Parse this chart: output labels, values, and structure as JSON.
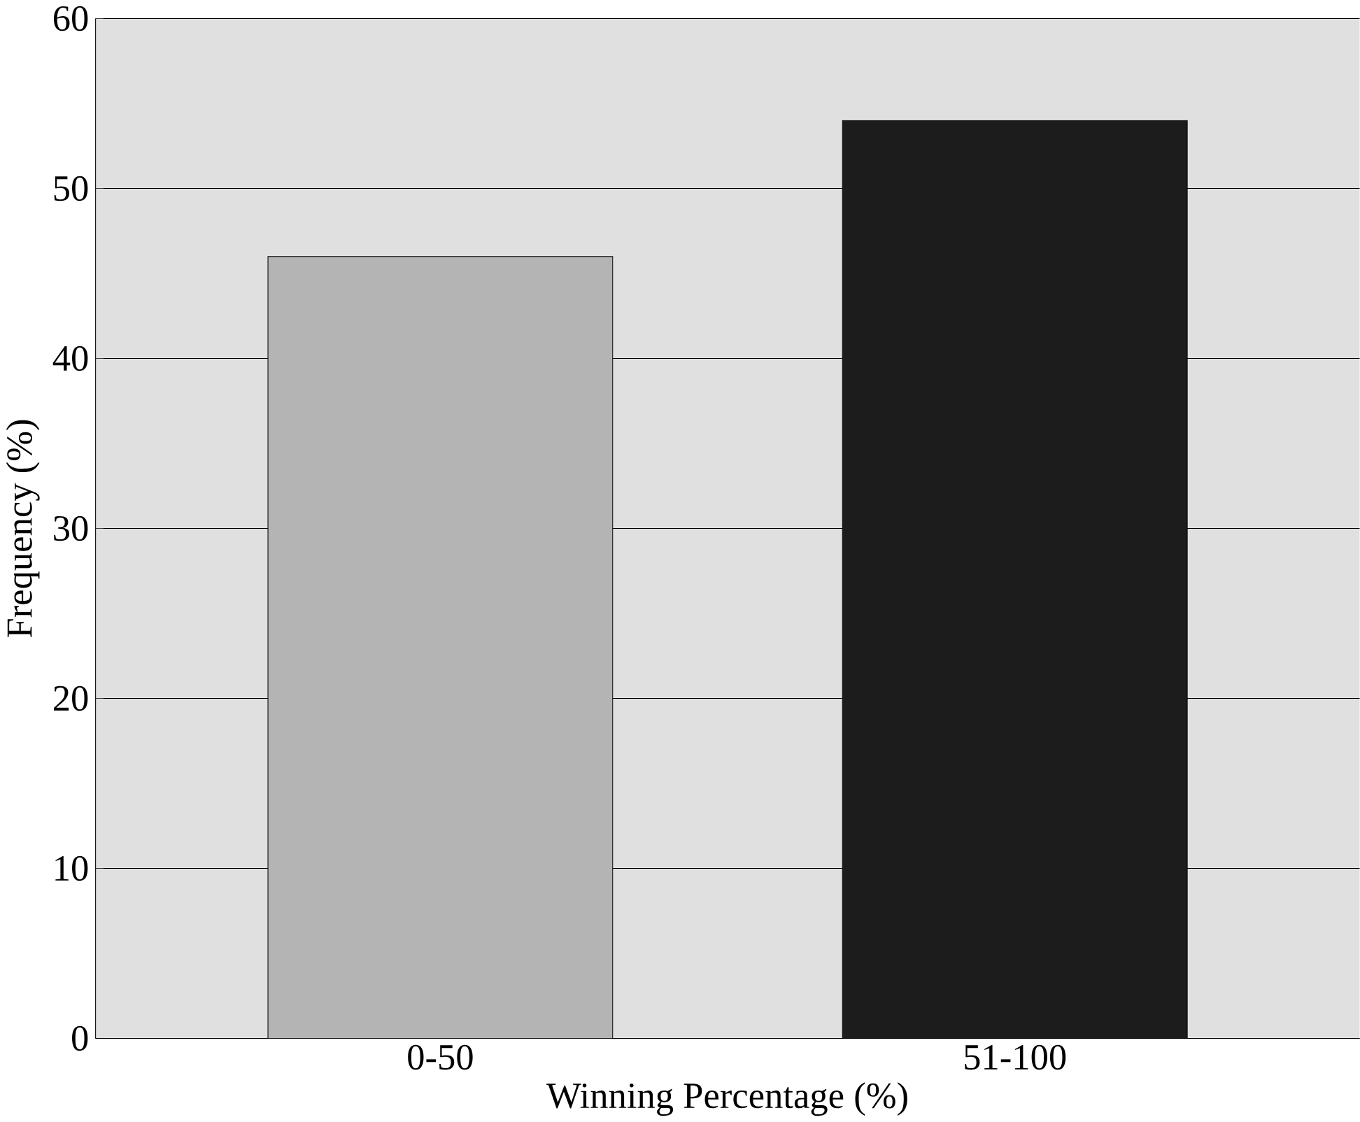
{
  "chart_data": {
    "type": "bar",
    "xlabel": "Winning Percentage (%)",
    "ylabel": "Frequency (%)",
    "categories": [
      "0-50",
      "51-100"
    ],
    "values": [
      46,
      54
    ],
    "colors": [
      "#b4b4b4",
      "#1c1c1c"
    ],
    "ylim": [
      0,
      60
    ],
    "yticks": [
      0,
      10,
      20,
      30,
      40,
      50,
      60
    ],
    "grid": "y"
  }
}
